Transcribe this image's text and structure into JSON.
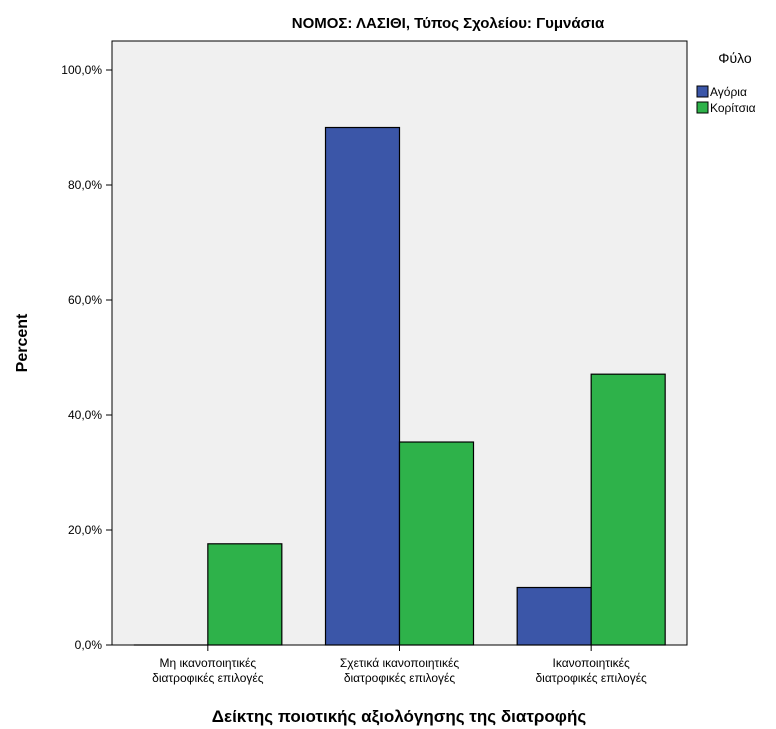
{
  "chart_data": {
    "type": "bar",
    "title": "ΝΟΜΟΣ: ΛΑΣΙΘΙ, Τύπος Σχολείου: Γυμνάσια",
    "xlabel": "Δείκτης ποιοτικής αξιολόγησης της διατροφής",
    "ylabel": "Percent",
    "categories": [
      [
        "Μη ικανοποιητικές",
        "διατροφικές επιλογές"
      ],
      [
        "Σχετικά ικανοποιητικές",
        "διατροφικές επιλογές"
      ],
      [
        "Ικανοποιητικές",
        "διατροφικές επιλογές"
      ]
    ],
    "series": [
      {
        "name": "Αγόρια",
        "color": "#3b56a8",
        "values": [
          0.0,
          90.0,
          10.0
        ]
      },
      {
        "name": "Κορίτσια",
        "color": "#2eb24a",
        "values": [
          17.6,
          35.3,
          47.1
        ]
      }
    ],
    "ylim": [
      0,
      100
    ],
    "yticks": [
      0,
      20,
      40,
      60,
      80,
      100
    ],
    "ytick_labels": [
      "0,0%",
      "20,0%",
      "40,0%",
      "60,0%",
      "80,0%",
      "100,0%"
    ],
    "legend_title": "Φύλο",
    "legend_position": "right",
    "plot_background": "#f0f0f0",
    "grid": false
  }
}
